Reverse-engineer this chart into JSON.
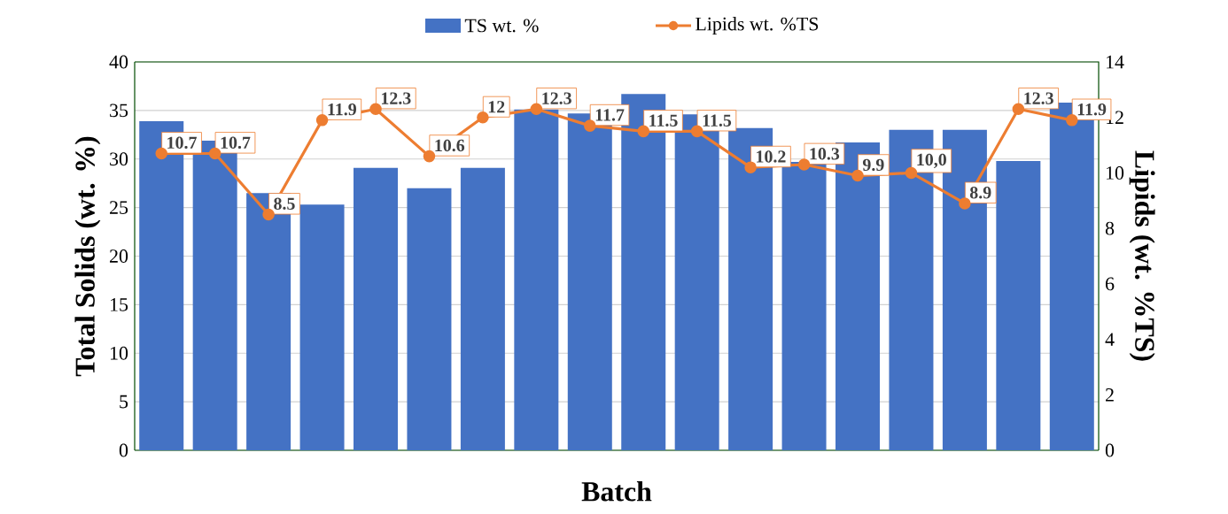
{
  "chart_data": {
    "type": "bar",
    "xlabel": "Batch",
    "ylabel": "Total Solids (wt. %)",
    "y2label": "Lipids (wt. %TS)",
    "categories": [
      null,
      null,
      null,
      null,
      null,
      null,
      null,
      null,
      null,
      null,
      null,
      null,
      null,
      null,
      null,
      null,
      null,
      null
    ],
    "series": [
      {
        "name": "TS wt. %",
        "type": "bar",
        "color": "#4472c4",
        "values": [
          33.9,
          31.9,
          26.5,
          25.3,
          29.1,
          27.0,
          29.1,
          35.1,
          34.7,
          36.7,
          34.6,
          33.2,
          29.7,
          31.7,
          33.0,
          33.0,
          29.8,
          35.8
        ]
      },
      {
        "name": "Lipids wt. %TS",
        "type": "line",
        "axis": "y2",
        "color": "#ed7d31",
        "marker": "circle",
        "values": [
          10.7,
          10.7,
          8.5,
          11.9,
          12.3,
          10.6,
          12,
          12.3,
          11.7,
          11.5,
          11.5,
          10.2,
          10.3,
          9.9,
          10.0,
          8.9,
          12.3,
          11.9
        ],
        "value_labels": [
          "10.7",
          "10.7",
          "8.5",
          "11.9",
          "12.3",
          "10.6",
          "12",
          "12.3",
          "11.7",
          "11.5",
          "11.5",
          "10.2",
          "10.3",
          "9.9",
          "10,0",
          "8.9",
          "12.3",
          "11.9"
        ]
      }
    ],
    "ylim": [
      0,
      40
    ],
    "yticks": [
      0,
      5,
      10,
      15,
      20,
      25,
      30,
      35,
      40
    ],
    "y2lim": [
      0,
      14
    ],
    "y2ticks": [
      0,
      2,
      4,
      6,
      8,
      10,
      12,
      14
    ],
    "grid": "y",
    "legend": "top"
  }
}
